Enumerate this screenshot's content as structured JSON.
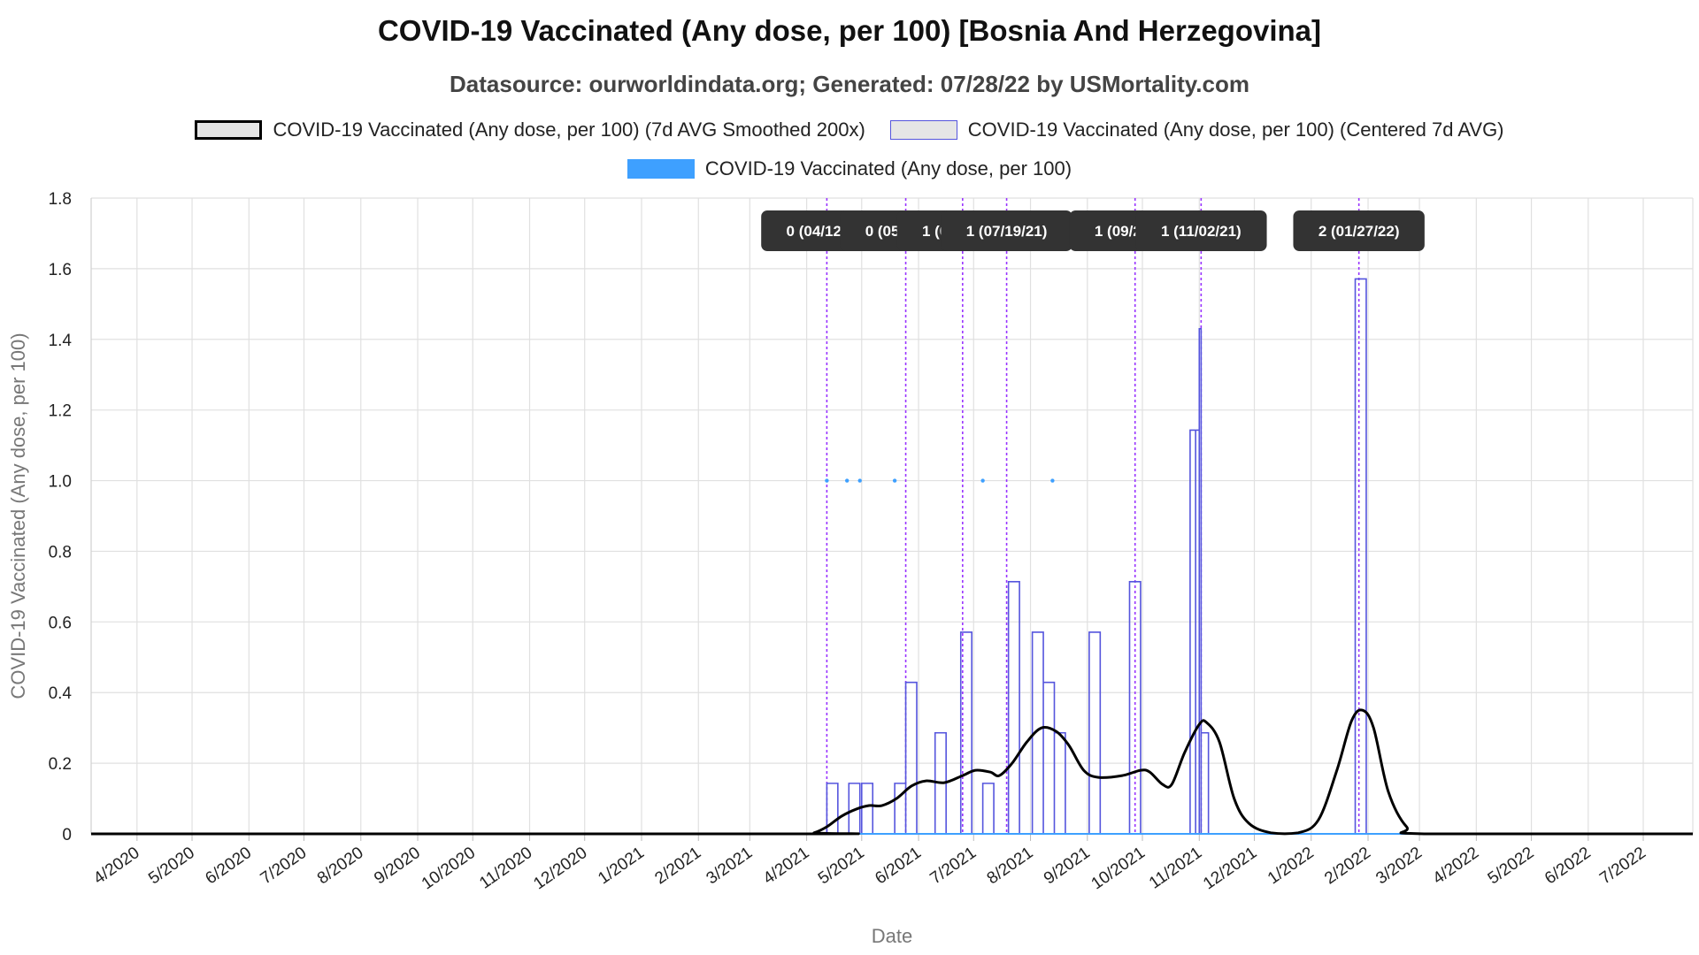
{
  "header": {
    "title": "COVID-19 Vaccinated (Any dose, per 100) [Bosnia And Herzegovina]",
    "subtitle": "Datasource: ourworldindata.org; Generated: 07/28/22 by USMortality.com"
  },
  "legend": {
    "items": [
      {
        "label": "COVID-19 Vaccinated (Any dose, per 100) (7d AVG Smoothed 200x)",
        "style": "smoothed"
      },
      {
        "label": "COVID-19 Vaccinated (Any dose, per 100) (Centered 7d AVG)",
        "style": "centered"
      },
      {
        "label": "COVID-19 Vaccinated (Any dose, per 100)",
        "style": "raw"
      }
    ]
  },
  "colors": {
    "smoothed": "#000000",
    "centered": "#5555dd",
    "raw": "#3ea0ff",
    "annotation_line": "#9933ff",
    "annotation_bg": "#333333",
    "grid": "#e0e0e0"
  },
  "chart_data": {
    "type": "line",
    "xlabel": "Date",
    "ylabel": "COVID-19 Vaccinated (Any dose, per 100)",
    "ylim": [
      0,
      1.8
    ],
    "yticks": [
      0,
      0.2,
      0.4,
      0.6,
      0.8,
      1.0,
      1.2,
      1.4,
      1.6,
      1.8
    ],
    "ytick_labels": [
      "0",
      "0.2",
      "0.4",
      "0.6",
      "0.8",
      "1.0",
      "1.2",
      "1.4",
      "1.6",
      "1.8"
    ],
    "xlim": [
      "2020-03-07",
      "2022-07-28"
    ],
    "xticks": [
      {
        "date": "2020-04-01",
        "label": "4/2020"
      },
      {
        "date": "2020-05-01",
        "label": "5/2020"
      },
      {
        "date": "2020-06-01",
        "label": "6/2020"
      },
      {
        "date": "2020-07-01",
        "label": "7/2020"
      },
      {
        "date": "2020-08-01",
        "label": "8/2020"
      },
      {
        "date": "2020-09-01",
        "label": "9/2020"
      },
      {
        "date": "2020-10-01",
        "label": "10/2020"
      },
      {
        "date": "2020-11-01",
        "label": "11/2020"
      },
      {
        "date": "2020-12-01",
        "label": "12/2020"
      },
      {
        "date": "2021-01-01",
        "label": "1/2021"
      },
      {
        "date": "2021-02-01",
        "label": "2/2021"
      },
      {
        "date": "2021-03-01",
        "label": "3/2021"
      },
      {
        "date": "2021-04-01",
        "label": "4/2021"
      },
      {
        "date": "2021-05-01",
        "label": "5/2021"
      },
      {
        "date": "2021-06-01",
        "label": "6/2021"
      },
      {
        "date": "2021-07-01",
        "label": "7/2021"
      },
      {
        "date": "2021-08-01",
        "label": "8/2021"
      },
      {
        "date": "2021-09-01",
        "label": "9/2021"
      },
      {
        "date": "2021-10-01",
        "label": "10/2021"
      },
      {
        "date": "2021-11-01",
        "label": "11/2021"
      },
      {
        "date": "2021-12-01",
        "label": "12/2021"
      },
      {
        "date": "2022-01-01",
        "label": "1/2022"
      },
      {
        "date": "2022-02-01",
        "label": "2/2022"
      },
      {
        "date": "2022-03-01",
        "label": "3/2022"
      },
      {
        "date": "2022-04-01",
        "label": "4/2022"
      },
      {
        "date": "2022-05-01",
        "label": "5/2022"
      },
      {
        "date": "2022-06-01",
        "label": "6/2022"
      },
      {
        "date": "2022-07-01",
        "label": "7/2022"
      }
    ],
    "grid": true,
    "legend_position": "top",
    "series": [
      {
        "name": "COVID-19 Vaccinated (Any dose, per 100) (7d AVG Smoothed 200x)",
        "style": "smoothed",
        "points": [
          [
            "2020-03-07",
            0
          ],
          [
            "2021-03-30",
            0
          ],
          [
            "2021-04-05",
            0.003
          ],
          [
            "2021-04-12",
            0.02
          ],
          [
            "2021-04-20",
            0.05
          ],
          [
            "2021-04-28",
            0.07
          ],
          [
            "2021-05-05",
            0.08
          ],
          [
            "2021-05-12",
            0.08
          ],
          [
            "2021-05-20",
            0.1
          ],
          [
            "2021-05-28",
            0.135
          ],
          [
            "2021-06-05",
            0.15
          ],
          [
            "2021-06-15",
            0.145
          ],
          [
            "2021-06-25",
            0.165
          ],
          [
            "2021-07-02",
            0.18
          ],
          [
            "2021-07-10",
            0.175
          ],
          [
            "2021-07-15",
            0.165
          ],
          [
            "2021-07-22",
            0.2
          ],
          [
            "2021-07-30",
            0.26
          ],
          [
            "2021-08-07",
            0.3
          ],
          [
            "2021-08-15",
            0.29
          ],
          [
            "2021-08-22",
            0.25
          ],
          [
            "2021-08-30",
            0.18
          ],
          [
            "2021-09-07",
            0.16
          ],
          [
            "2021-09-20",
            0.165
          ],
          [
            "2021-09-30",
            0.18
          ],
          [
            "2021-10-05",
            0.175
          ],
          [
            "2021-10-12",
            0.14
          ],
          [
            "2021-10-17",
            0.14
          ],
          [
            "2021-10-24",
            0.23
          ],
          [
            "2021-11-01",
            0.31
          ],
          [
            "2021-11-05",
            0.315
          ],
          [
            "2021-11-12",
            0.26
          ],
          [
            "2021-11-20",
            0.1
          ],
          [
            "2021-11-28",
            0.03
          ],
          [
            "2021-12-10",
            0.003
          ],
          [
            "2021-12-25",
            0.003
          ],
          [
            "2022-01-05",
            0.04
          ],
          [
            "2022-01-15",
            0.18
          ],
          [
            "2022-01-23",
            0.32
          ],
          [
            "2022-01-29",
            0.35
          ],
          [
            "2022-02-04",
            0.3
          ],
          [
            "2022-02-12",
            0.12
          ],
          [
            "2022-02-22",
            0.02
          ],
          [
            "2022-03-05",
            0
          ],
          [
            "2022-07-28",
            0
          ]
        ]
      },
      {
        "name": "COVID-19 Vaccinated (Any dose, per 100) (Centered 7d AVG)",
        "style": "centered",
        "pulses": [
          {
            "start": "2021-04-12",
            "end": "2021-04-18",
            "value": 0.143
          },
          {
            "start": "2021-04-24",
            "end": "2021-04-30",
            "value": 0.143
          },
          {
            "start": "2021-05-01",
            "end": "2021-05-07",
            "value": 0.143
          },
          {
            "start": "2021-05-19",
            "end": "2021-05-25",
            "value": 0.143
          },
          {
            "start": "2021-05-25",
            "end": "2021-05-31",
            "value": 0.429
          },
          {
            "start": "2021-06-10",
            "end": "2021-06-16",
            "value": 0.286
          },
          {
            "start": "2021-06-24",
            "end": "2021-06-30",
            "value": 0.571
          },
          {
            "start": "2021-07-06",
            "end": "2021-07-12",
            "value": 0.143
          },
          {
            "start": "2021-07-20",
            "end": "2021-07-26",
            "value": 0.714
          },
          {
            "start": "2021-08-02",
            "end": "2021-08-08",
            "value": 0.571
          },
          {
            "start": "2021-08-08",
            "end": "2021-08-14",
            "value": 0.429
          },
          {
            "start": "2021-08-14",
            "end": "2021-08-20",
            "value": 0.286
          },
          {
            "start": "2021-09-02",
            "end": "2021-09-08",
            "value": 0.571
          },
          {
            "start": "2021-09-24",
            "end": "2021-09-30",
            "value": 0.714
          },
          {
            "start": "2021-10-27",
            "end": "2021-10-30",
            "value": 1.143
          },
          {
            "start": "2021-10-30",
            "end": "2021-11-01",
            "value": 1.143
          },
          {
            "start": "2021-11-01",
            "end": "2021-11-02",
            "value": 1.43
          },
          {
            "start": "2021-11-02",
            "end": "2021-11-06",
            "value": 0.286
          },
          {
            "start": "2022-01-25",
            "end": "2022-01-31",
            "value": 1.571
          }
        ]
      },
      {
        "name": "COVID-19 Vaccinated (Any dose, per 100)",
        "style": "raw",
        "points": [
          [
            "2021-04-12",
            1
          ],
          [
            "2021-04-23",
            1
          ],
          [
            "2021-04-30",
            1
          ],
          [
            "2021-05-19",
            1
          ],
          [
            "2021-07-06",
            1
          ],
          [
            "2021-08-13",
            1
          ]
        ]
      }
    ],
    "annotations": [
      {
        "date": "2021-04-12",
        "label": "0 (04/12/21)"
      },
      {
        "date": "2021-05-25",
        "label": "0 (05/25/21)"
      },
      {
        "date": "2021-06-25",
        "label": "1 (06/25/21)"
      },
      {
        "date": "2021-07-19",
        "label": "1 (07/19/21)"
      },
      {
        "date": "2021-09-27",
        "label": "1 (09/27/21)"
      },
      {
        "date": "2021-11-02",
        "label": "1 (11/02/21)"
      },
      {
        "date": "2022-01-27",
        "label": "2 (01/27/22)"
      }
    ]
  }
}
